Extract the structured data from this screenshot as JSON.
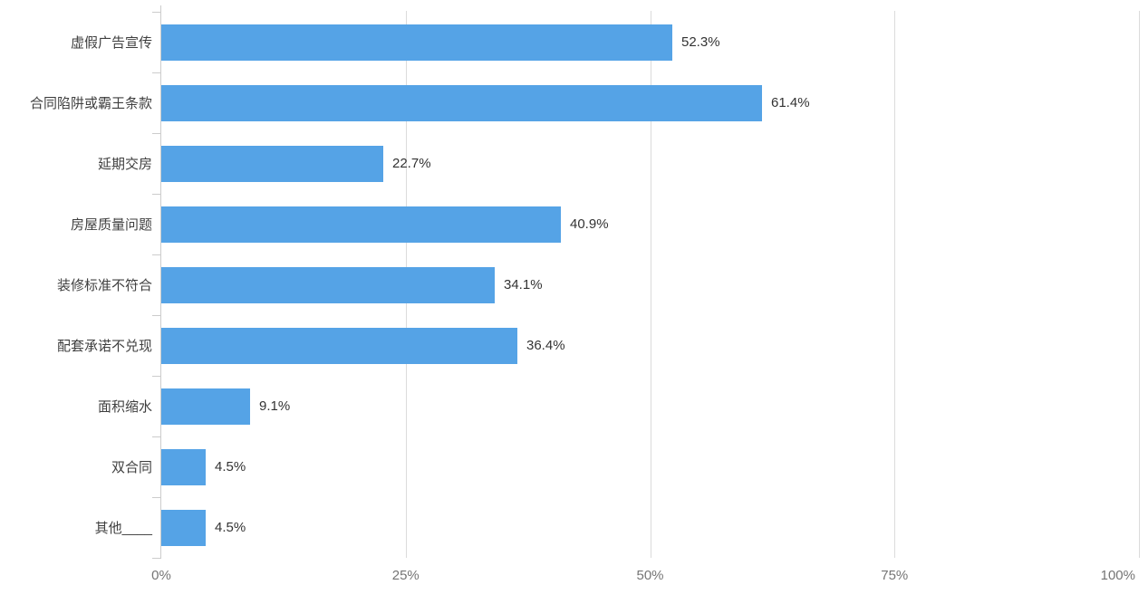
{
  "chart_data": {
    "type": "bar",
    "orientation": "horizontal",
    "title": "",
    "xlabel": "",
    "ylabel": "",
    "xlim": [
      0,
      100
    ],
    "grid": true,
    "legend": false,
    "categories": [
      "虚假广告宣传",
      "合同陷阱或霸王条款",
      "延期交房",
      "房屋质量问题",
      "装修标准不符合",
      "配套承诺不兑现",
      "面积缩水",
      "双合同",
      "其他____"
    ],
    "values": [
      52.3,
      61.4,
      22.7,
      40.9,
      34.1,
      36.4,
      9.1,
      4.5,
      4.5
    ],
    "value_labels": [
      "52.3%",
      "61.4%",
      "22.7%",
      "40.9%",
      "34.1%",
      "36.4%",
      "9.1%",
      "4.5%",
      "4.5%"
    ],
    "x_tick_values": [
      0,
      25,
      50,
      75,
      100
    ],
    "x_tick_labels": [
      "0%",
      "25%",
      "50%",
      "75%",
      "100%"
    ],
    "colors": {
      "bar": "#55a3e6",
      "gridline": "#dbdbdb",
      "axis": "#cccccc",
      "category_text": "#3f3f3f",
      "value_text": "#333333",
      "tick_text": "#757575",
      "background": "#ffffff"
    }
  }
}
